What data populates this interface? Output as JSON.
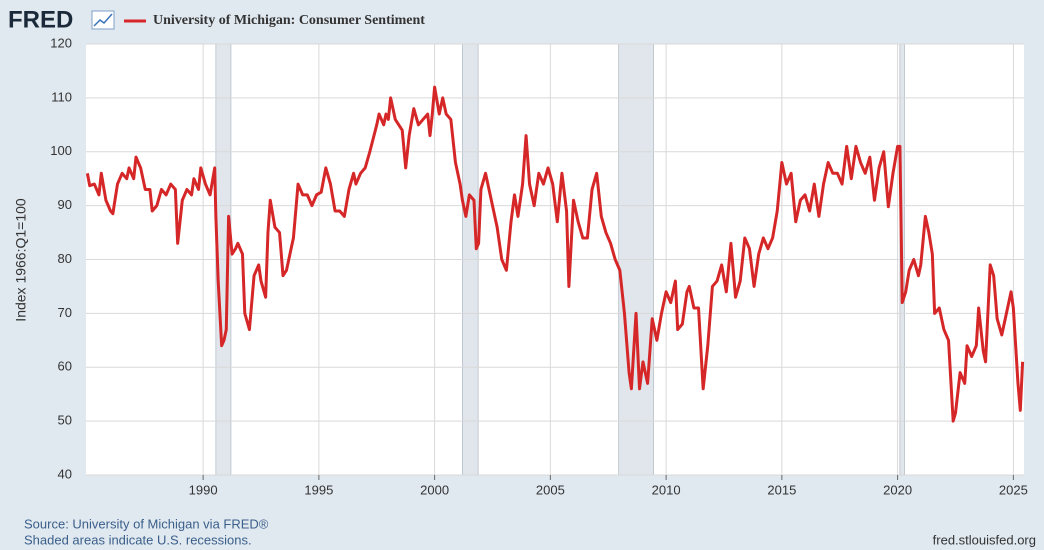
{
  "brand": "FRED",
  "chart_data": {
    "type": "line",
    "title": "University of Michigan: Consumer Sentiment",
    "y_label": "Index 1966:Q1=100",
    "source": "Source: University of Michigan via FRED®",
    "note": "Shaded areas indicate U.S. recessions.",
    "site": "fred.stlouisfed.org",
    "xlim": [
      1984.94,
      2025.46
    ],
    "ylim": [
      40,
      120
    ],
    "xticks": [
      1990,
      1995,
      2000,
      2005,
      2010,
      2015,
      2020,
      2025
    ],
    "yticks": [
      40,
      50,
      60,
      70,
      80,
      90,
      100,
      110,
      120
    ],
    "grid": true,
    "recessions": [
      [
        1990.55,
        1991.2
      ],
      [
        2001.2,
        2001.88
      ],
      [
        2007.95,
        2009.46
      ],
      [
        2020.1,
        2020.3
      ]
    ],
    "x": [
      1985.0,
      1985.1,
      1985.3,
      1985.5,
      1985.6,
      1985.8,
      1986.0,
      1986.1,
      1986.3,
      1986.5,
      1986.7,
      1986.8,
      1987.0,
      1987.1,
      1987.3,
      1987.5,
      1987.7,
      1987.8,
      1988.0,
      1988.2,
      1988.4,
      1988.6,
      1988.8,
      1988.9,
      1989.1,
      1989.3,
      1989.5,
      1989.6,
      1989.8,
      1989.9,
      1990.1,
      1990.3,
      1990.5,
      1990.55,
      1990.65,
      1990.8,
      1990.9,
      1991.0,
      1991.1,
      1991.25,
      1991.4,
      1991.5,
      1991.7,
      1991.8,
      1992.0,
      1992.2,
      1992.4,
      1992.5,
      1992.7,
      1992.8,
      1992.9,
      1993.1,
      1993.3,
      1993.45,
      1993.6,
      1993.8,
      1993.9,
      1994.1,
      1994.3,
      1994.5,
      1994.7,
      1994.9,
      1995.1,
      1995.3,
      1995.5,
      1995.7,
      1995.9,
      1996.1,
      1996.3,
      1996.5,
      1996.6,
      1996.8,
      1997.0,
      1997.2,
      1997.5,
      1997.6,
      1997.8,
      1997.9,
      1998.0,
      1998.1,
      1998.3,
      1998.6,
      1998.75,
      1998.9,
      1999.1,
      1999.3,
      1999.5,
      1999.7,
      1999.8,
      1999.9,
      2000.0,
      2000.2,
      2000.35,
      2000.5,
      2000.7,
      2000.9,
      2001.1,
      2001.2,
      2001.35,
      2001.5,
      2001.7,
      2001.8,
      2001.9,
      2002.0,
      2002.2,
      2002.4,
      2002.6,
      2002.7,
      2002.9,
      2003.1,
      2003.3,
      2003.45,
      2003.6,
      2003.8,
      2003.95,
      2004.1,
      2004.3,
      2004.5,
      2004.7,
      2004.9,
      2005.1,
      2005.3,
      2005.5,
      2005.7,
      2005.8,
      2006.0,
      2006.2,
      2006.4,
      2006.6,
      2006.8,
      2007.0,
      2007.2,
      2007.4,
      2007.6,
      2007.8,
      2008.0,
      2008.2,
      2008.4,
      2008.5,
      2008.7,
      2008.85,
      2009.0,
      2009.2,
      2009.4,
      2009.6,
      2009.8,
      2010.0,
      2010.2,
      2010.4,
      2010.5,
      2010.7,
      2010.9,
      2011.0,
      2011.2,
      2011.4,
      2011.6,
      2011.8,
      2012.0,
      2012.2,
      2012.4,
      2012.6,
      2012.8,
      2013.0,
      2013.2,
      2013.4,
      2013.6,
      2013.8,
      2014.0,
      2014.2,
      2014.4,
      2014.6,
      2014.8,
      2015.0,
      2015.2,
      2015.4,
      2015.6,
      2015.8,
      2016.0,
      2016.2,
      2016.4,
      2016.6,
      2016.8,
      2017.0,
      2017.2,
      2017.4,
      2017.6,
      2017.8,
      2018.0,
      2018.2,
      2018.4,
      2018.6,
      2018.8,
      2019.0,
      2019.2,
      2019.4,
      2019.6,
      2019.8,
      2020.0,
      2020.1,
      2020.2,
      2020.35,
      2020.5,
      2020.7,
      2020.9,
      2021.0,
      2021.2,
      2021.35,
      2021.5,
      2021.6,
      2021.8,
      2022.0,
      2022.2,
      2022.4,
      2022.5,
      2022.7,
      2022.9,
      2023.0,
      2023.2,
      2023.4,
      2023.5,
      2023.7,
      2023.8,
      2024.0,
      2024.15,
      2024.3,
      2024.5,
      2024.7,
      2024.9,
      2025.0,
      2025.2,
      2025.3,
      2025.4
    ],
    "series": [
      {
        "name": "University of Michigan: Consumer Sentiment",
        "color": "#d62728",
        "values": [
          96,
          93.7,
          94,
          92,
          96,
          91,
          89,
          88.5,
          94,
          96,
          95,
          97,
          95,
          99,
          97,
          93,
          93,
          89,
          90,
          93,
          92,
          94,
          93,
          83,
          91,
          93,
          92,
          95,
          93,
          97,
          94,
          92,
          97,
          88,
          76,
          64,
          65,
          67,
          88,
          81,
          82,
          83,
          81,
          70,
          67,
          77,
          79,
          76,
          73,
          85,
          91,
          86,
          85,
          77,
          78,
          82,
          84,
          94,
          92,
          92,
          90,
          92,
          92.5,
          97,
          94,
          89,
          89,
          88,
          93,
          96,
          94,
          96,
          97,
          100,
          105,
          107,
          105,
          107,
          106,
          110,
          106,
          104,
          97,
          103,
          108,
          105,
          106,
          107,
          103,
          107,
          112,
          107,
          110,
          107,
          106,
          98,
          94,
          91,
          88,
          92,
          91,
          82,
          83,
          93,
          96,
          92,
          88,
          86,
          80,
          78,
          87,
          92,
          88,
          94,
          103,
          94,
          90,
          96,
          94,
          97,
          94,
          87,
          96,
          89,
          75,
          91,
          87,
          84,
          84,
          93,
          96,
          88,
          85,
          83,
          80,
          78,
          70,
          59,
          56,
          70,
          56,
          61,
          57,
          69,
          65,
          70,
          74,
          72,
          76,
          67,
          68,
          74,
          75,
          71,
          71,
          56,
          64,
          75,
          76,
          79,
          74,
          83,
          73,
          76,
          84,
          82,
          75,
          81,
          84,
          82,
          84,
          89,
          98,
          94,
          96,
          87,
          91,
          92,
          89,
          94,
          88,
          94,
          98,
          96,
          96,
          94,
          101,
          95,
          101,
          98,
          96,
          99,
          91,
          97,
          100,
          89.8,
          96,
          101,
          101,
          72,
          74,
          78,
          80,
          77,
          79,
          88,
          85,
          81,
          70,
          71,
          67,
          65,
          50,
          51.5,
          59,
          57,
          64,
          62,
          64,
          71,
          63,
          61,
          79,
          77,
          69,
          66,
          70,
          74,
          71,
          57,
          52,
          61
        ]
      }
    ]
  }
}
